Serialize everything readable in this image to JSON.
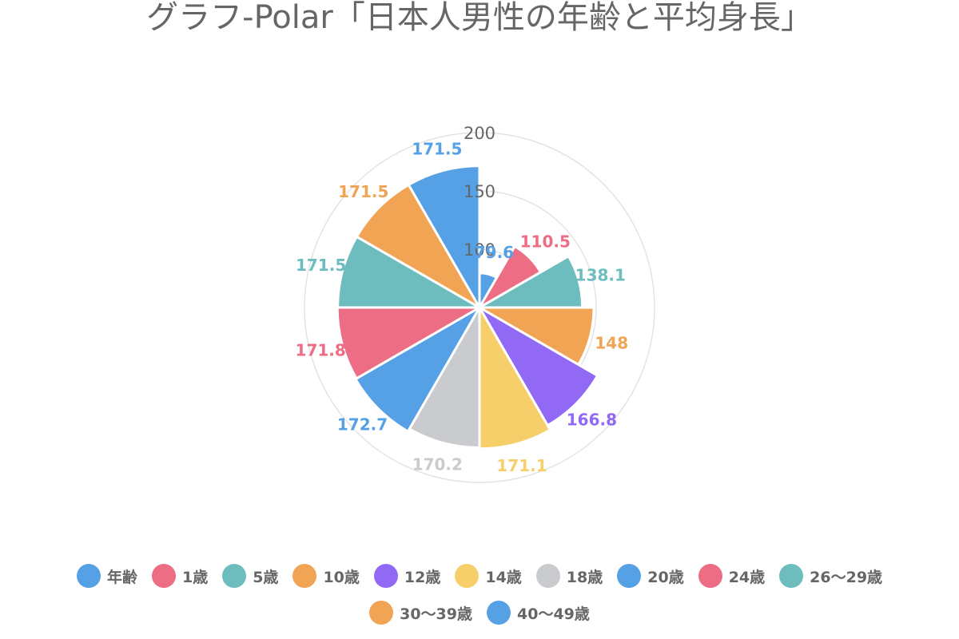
{
  "chart_data": {
    "type": "polarArea",
    "title": "グラフ-Polar「日本人男性の年齢と平均身長」",
    "categories": [
      "年齢",
      "1歳",
      "5歳",
      "10歳",
      "12歳",
      "14歳",
      "18歳",
      "20歳",
      "24歳",
      "26〜29歳",
      "30〜39歳",
      "40〜49歳"
    ],
    "values": [
      79.6,
      110.5,
      138.1,
      148,
      166.8,
      171.1,
      170.2,
      172.7,
      171.8,
      171.5,
      171.5,
      171.5
    ],
    "colors": [
      "#56a0e5",
      "#ed6d85",
      "#6dbdbf",
      "#f0a454",
      "#9169f5",
      "#f6cf6b",
      "#c9cbcf",
      "#56a0e5",
      "#ed6d85",
      "#6dbdbf",
      "#f0a454",
      "#56a0e5"
    ],
    "radial_ticks": [
      "100",
      "150",
      "200"
    ],
    "r_range": [
      50,
      200
    ],
    "legend_position": "bottom",
    "data_labels": true
  }
}
